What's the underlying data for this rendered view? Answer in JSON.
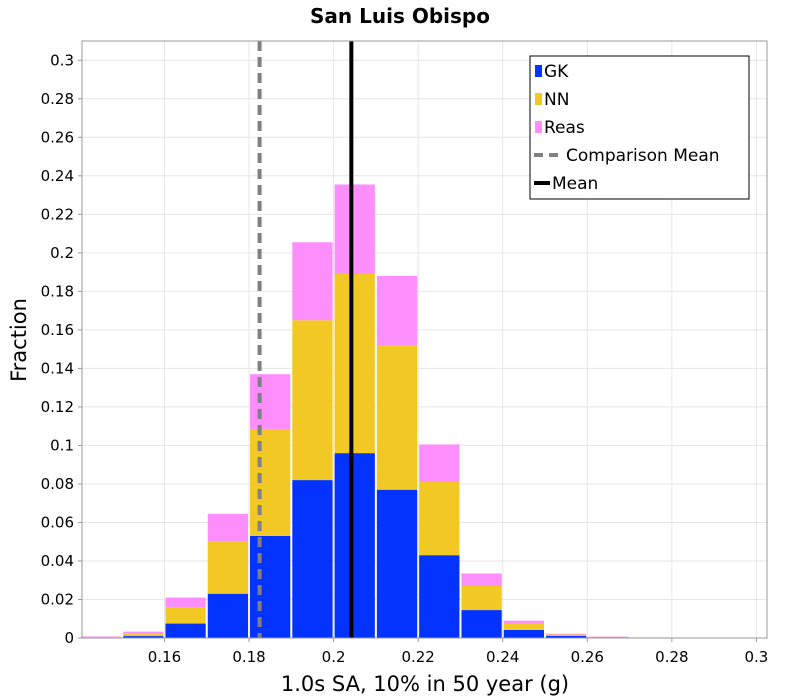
{
  "chart_data": {
    "type": "bar",
    "stacked": true,
    "title": "San Luis Obispo",
    "xlabel": "1.0s SA, 10% in 50 year (g)",
    "ylabel": "Fraction",
    "xlim": [
      0.1405,
      0.3025
    ],
    "ylim": [
      0,
      0.31
    ],
    "xticks": [
      0.16,
      0.18,
      0.2,
      0.22,
      0.24,
      0.26,
      0.28,
      0.3
    ],
    "xtick_labels": [
      "0.16",
      "0.18",
      "0.2",
      "0.22",
      "0.24",
      "0.26",
      "0.28",
      "0.3"
    ],
    "yticks": [
      0,
      0.02,
      0.04,
      0.06,
      0.08,
      0.1,
      0.12,
      0.14,
      0.16,
      0.18,
      0.2,
      0.22,
      0.24,
      0.26,
      0.28,
      0.3
    ],
    "ytick_labels": [
      "0",
      "0.02",
      "0.04",
      "0.06",
      "0.08",
      "0.1",
      "0.12",
      "0.14",
      "0.16",
      "0.18",
      "0.2",
      "0.22",
      "0.24",
      "0.26",
      "0.28",
      "0.3"
    ],
    "bin_width": 0.01,
    "categories": [
      0.145,
      0.155,
      0.165,
      0.175,
      0.185,
      0.195,
      0.205,
      0.215,
      0.225,
      0.235,
      0.245,
      0.255,
      0.265,
      0.275,
      0.285,
      0.295
    ],
    "series": [
      {
        "name": "GK",
        "color": "#0433ff",
        "values": [
          0.0003,
          0.001,
          0.0075,
          0.023,
          0.053,
          0.082,
          0.096,
          0.077,
          0.043,
          0.0145,
          0.0042,
          0.0011,
          0.0004,
          0.0001,
          0.0001,
          0.0
        ]
      },
      {
        "name": "NN",
        "color": "#f2c824",
        "values": [
          0.0003,
          0.0015,
          0.0085,
          0.027,
          0.0555,
          0.083,
          0.093,
          0.075,
          0.038,
          0.0125,
          0.0033,
          0.0007,
          0.0002,
          0.0001,
          0.0,
          0.0
        ]
      },
      {
        "name": "Reas",
        "color": "#fc8ffc",
        "values": [
          0.0002,
          0.0008,
          0.005,
          0.0145,
          0.0285,
          0.0405,
          0.0465,
          0.036,
          0.0195,
          0.0065,
          0.0015,
          0.0004,
          0.0001,
          0.0001,
          0.0001,
          0.0
        ]
      }
    ],
    "lines": [
      {
        "name": "Comparison Mean",
        "x": 0.1825,
        "color": "#808080",
        "style": "dashed"
      },
      {
        "name": "Mean",
        "x": 0.2042,
        "color": "#000000",
        "style": "solid"
      }
    ],
    "legend": {
      "position": "top-right",
      "entries": [
        {
          "label": "GK",
          "color": "#0433ff",
          "kind": "box"
        },
        {
          "label": "NN",
          "color": "#f2c824",
          "kind": "box"
        },
        {
          "label": "Reas",
          "color": "#fc8ffc",
          "kind": "box"
        },
        {
          "label": "Comparison Mean",
          "color": "#808080",
          "kind": "dashed-line"
        },
        {
          "label": "Mean",
          "color": "#000000",
          "kind": "solid-line"
        }
      ]
    },
    "grid": true
  }
}
